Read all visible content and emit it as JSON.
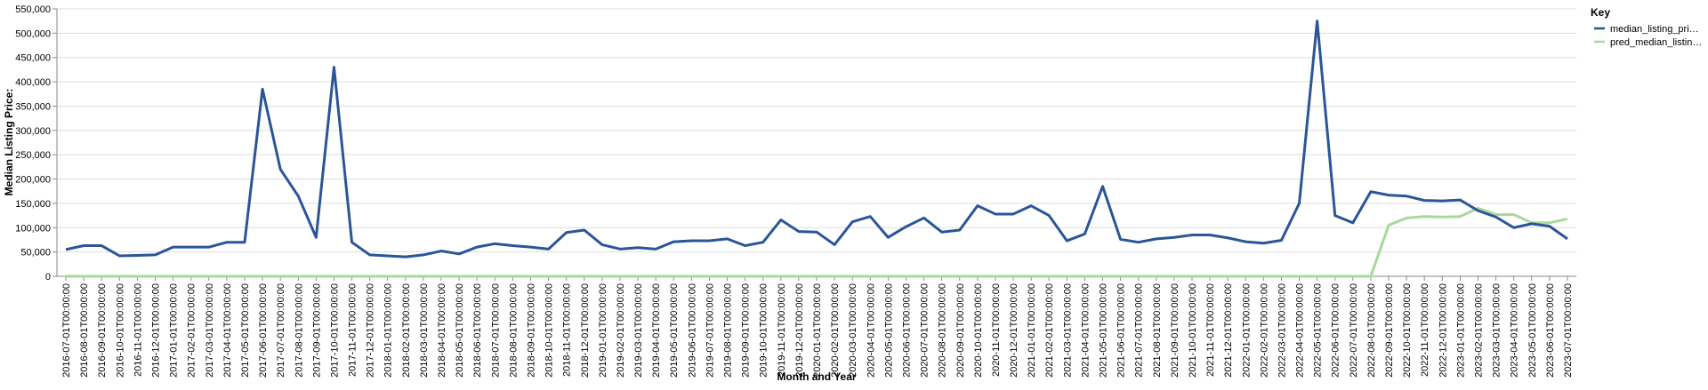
{
  "chart_data": {
    "type": "line",
    "x_label": "Month and Year",
    "y_label": "Median Listing Price:",
    "legend_title": "Key",
    "legend_position": "right",
    "grid": true,
    "ylim": [
      0,
      550000
    ],
    "yticks": [
      0,
      {
        "value": 50000,
        "label": "50,000"
      },
      {
        "value": 100000,
        "label": "100,000"
      },
      {
        "value": 150000,
        "label": "150,000"
      },
      {
        "value": 200000,
        "label": "200,000"
      },
      {
        "value": 250000,
        "label": "250,000"
      },
      {
        "value": 300000,
        "label": "300,000"
      },
      {
        "value": 350000,
        "label": "350,000"
      },
      {
        "value": 400000,
        "label": "400,000"
      },
      {
        "value": 450000,
        "label": "450,000"
      },
      {
        "value": 500000,
        "label": "500,000"
      },
      {
        "value": 550000,
        "label": "550,000"
      }
    ],
    "categories": [
      "2016-07-01T00:00:00",
      "2016-08-01T00:00:00",
      "2016-09-01T00:00:00",
      "2016-10-01T00:00:00",
      "2016-11-01T00:00:00",
      "2016-12-01T00:00:00",
      "2017-01-01T00:00:00",
      "2017-02-01T00:00:00",
      "2017-03-01T00:00:00",
      "2017-04-01T00:00:00",
      "2017-05-01T00:00:00",
      "2017-06-01T00:00:00",
      "2017-07-01T00:00:00",
      "2017-08-01T00:00:00",
      "2017-09-01T00:00:00",
      "2017-10-01T00:00:00",
      "2017-11-01T00:00:00",
      "2017-12-01T00:00:00",
      "2018-01-01T00:00:00",
      "2018-02-01T00:00:00",
      "2018-03-01T00:00:00",
      "2018-04-01T00:00:00",
      "2018-05-01T00:00:00",
      "2018-06-01T00:00:00",
      "2018-07-01T00:00:00",
      "2018-08-01T00:00:00",
      "2018-09-01T00:00:00",
      "2018-10-01T00:00:00",
      "2018-11-01T00:00:00",
      "2018-12-01T00:00:00",
      "2019-01-01T00:00:00",
      "2019-02-01T00:00:00",
      "2019-03-01T00:00:00",
      "2019-04-01T00:00:00",
      "2019-05-01T00:00:00",
      "2019-06-01T00:00:00",
      "2019-07-01T00:00:00",
      "2019-08-01T00:00:00",
      "2019-09-01T00:00:00",
      "2019-10-01T00:00:00",
      "2019-11-01T00:00:00",
      "2019-12-01T00:00:00",
      "2020-01-01T00:00:00",
      "2020-02-01T00:00:00",
      "2020-03-01T00:00:00",
      "2020-04-01T00:00:00",
      "2020-05-01T00:00:00",
      "2020-06-01T00:00:00",
      "2020-07-01T00:00:00",
      "2020-08-01T00:00:00",
      "2020-09-01T00:00:00",
      "2020-10-01T00:00:00",
      "2020-11-01T00:00:00",
      "2020-12-01T00:00:00",
      "2021-01-01T00:00:00",
      "2021-02-01T00:00:00",
      "2021-03-01T00:00:00",
      "2021-04-01T00:00:00",
      "2021-05-01T00:00:00",
      "2021-06-01T00:00:00",
      "2021-07-01T00:00:00",
      "2021-08-01T00:00:00",
      "2021-09-01T00:00:00",
      "2021-10-01T00:00:00",
      "2021-11-01T00:00:00",
      "2021-12-01T00:00:00",
      "2022-01-01T00:00:00",
      "2022-02-01T00:00:00",
      "2022-03-01T00:00:00",
      "2022-04-01T00:00:00",
      "2022-05-01T00:00:00",
      "2022-06-01T00:00:00",
      "2022-07-01T00:00:00",
      "2022-08-01T00:00:00",
      "2022-09-01T00:00:00",
      "2022-10-01T00:00:00",
      "2022-11-01T00:00:00",
      "2022-12-01T00:00:00",
      "2023-01-01T00:00:00",
      "2023-02-01T00:00:00",
      "2023-03-01T00:00:00",
      "2023-04-01T00:00:00",
      "2023-05-01T00:00:00",
      "2023-06-01T00:00:00",
      "2023-07-01T00:00:00"
    ],
    "series": [
      {
        "name": "median_listing_pri…",
        "color": "#2a5599",
        "values": [
          55000,
          63000,
          63000,
          42000,
          43000,
          44000,
          60000,
          60000,
          60000,
          70000,
          70000,
          385000,
          220000,
          165000,
          80000,
          430000,
          70000,
          44000,
          42000,
          40000,
          44000,
          52000,
          46000,
          60000,
          67000,
          63000,
          60000,
          56000,
          90000,
          95000,
          65000,
          56000,
          59000,
          56000,
          71000,
          73000,
          73000,
          77000,
          63000,
          70000,
          116000,
          92000,
          91000,
          65000,
          112000,
          123000,
          80000,
          102000,
          120000,
          91000,
          95000,
          145000,
          128000,
          128000,
          145000,
          125000,
          73000,
          87000,
          185000,
          76000,
          70000,
          77000,
          80000,
          85000,
          85000,
          79000,
          71000,
          68000,
          74000,
          150000,
          525000,
          125000,
          110000,
          174000,
          167000,
          165000,
          156000,
          155000,
          157000,
          135000,
          122000,
          100000,
          108000,
          103000,
          77000
        ]
      },
      {
        "name": "pred_median_listin…",
        "color": "#a6d99a",
        "values": [
          0,
          0,
          0,
          0,
          0,
          0,
          0,
          0,
          0,
          0,
          0,
          0,
          0,
          0,
          0,
          0,
          0,
          0,
          0,
          0,
          0,
          0,
          0,
          0,
          0,
          0,
          0,
          0,
          0,
          0,
          0,
          0,
          0,
          0,
          0,
          0,
          0,
          0,
          0,
          0,
          0,
          0,
          0,
          0,
          0,
          0,
          0,
          0,
          0,
          0,
          0,
          0,
          0,
          0,
          0,
          0,
          0,
          0,
          0,
          0,
          0,
          0,
          0,
          0,
          0,
          0,
          0,
          0,
          0,
          0,
          0,
          0,
          0,
          0,
          105000,
          120000,
          123000,
          122000,
          123000,
          140000,
          127000,
          127000,
          110000,
          110000,
          118000
        ]
      }
    ]
  }
}
